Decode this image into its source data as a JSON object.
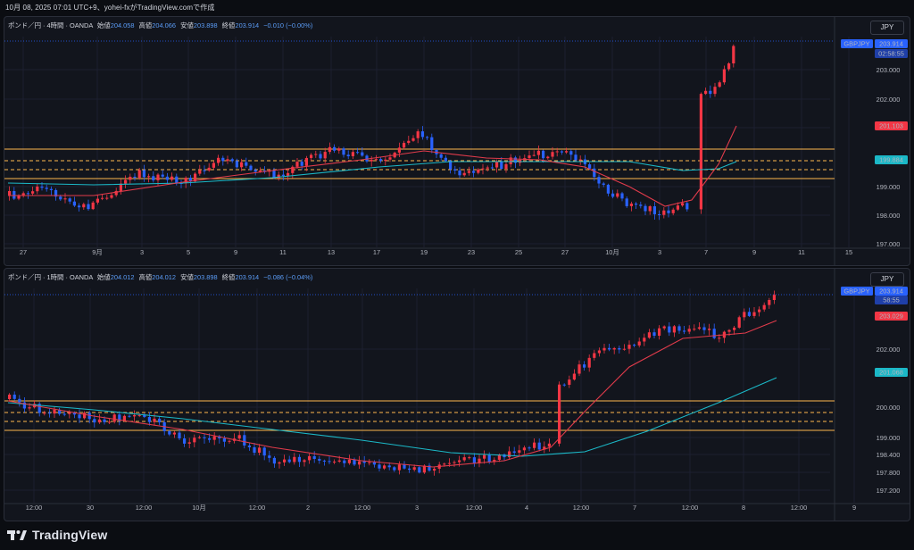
{
  "header": {
    "text": "10月 08, 2025 07:01 UTC+9、yohei-fxがTradingView.comで作成"
  },
  "colors": {
    "up": "#f23645",
    "down": "#2962ff",
    "ma_fast": "#e13b4b",
    "ma_slow": "#1bb8c7",
    "level": "#ffb74d",
    "bg": "#12151d"
  },
  "panels": [
    {
      "symbol_label": "ポンド／円 · 4時間 · OANDA",
      "open_label": "始値",
      "open": "204.058",
      "high_label": "高値",
      "high": "204.066",
      "low_label": "安値",
      "low": "203.898",
      "close_label": "終値",
      "close": "203.914",
      "change": "−0.010 (−0.00%)",
      "currency": "JPY",
      "price_ticks": [
        "203.000",
        "202.000",
        "201.000",
        "199.000",
        "198.000",
        "197.000"
      ],
      "time_ticks": [
        "27",
        "9月",
        "3",
        "5",
        "9",
        "11",
        "13",
        "17",
        "19",
        "23",
        "25",
        "27",
        "10月",
        "3",
        "7",
        "9",
        "11",
        "15"
      ],
      "badges": {
        "symbol": "GBPJPY",
        "price": "203.914",
        "countdown": "02:58:55",
        "ma_fast": "201.103",
        "ma_slow": "199.884"
      },
      "chart_data": {
        "type": "candlestick",
        "title": "ポンド／円 · 4時間 · OANDA",
        "y_range": [
          196.8,
          204.6
        ],
        "last_close": 203.914,
        "ma_fast_last": 201.103,
        "ma_slow_last": 199.884,
        "levels": [
          200.25,
          199.95,
          199.7,
          199.3
        ]
      }
    },
    {
      "symbol_label": "ポンド／円 · 1時間 · OANDA",
      "open_label": "始値",
      "open": "204.012",
      "high_label": "高値",
      "high": "204.012",
      "low_label": "安値",
      "low": "203.898",
      "close_label": "終値",
      "close": "203.914",
      "change": "−0.086 (−0.04%)",
      "currency": "JPY",
      "price_ticks": [
        "202.000",
        "200.000",
        "199.000",
        "198.400",
        "197.800",
        "197.200"
      ],
      "time_ticks": [
        "12:00",
        "30",
        "12:00",
        "10月",
        "12:00",
        "2",
        "12:00",
        "3",
        "12:00",
        "4",
        "12:00",
        "7",
        "12:00",
        "8",
        "12:00",
        "9"
      ],
      "badges": {
        "symbol": "GBPJPY",
        "price": "203.914",
        "countdown": "58:55",
        "ma_fast": "203.029",
        "ma_slow": "201.068"
      },
      "chart_data": {
        "type": "candlestick",
        "title": "ポンド／円 · 1時間 · OANDA",
        "y_range": [
          196.9,
          204.5
        ],
        "last_close": 203.914,
        "ma_fast_last": 203.029,
        "ma_slow_last": 201.068,
        "levels": [
          200.25,
          199.95,
          199.7,
          199.3
        ]
      }
    }
  ],
  "footer": {
    "brand": "TradingView"
  }
}
